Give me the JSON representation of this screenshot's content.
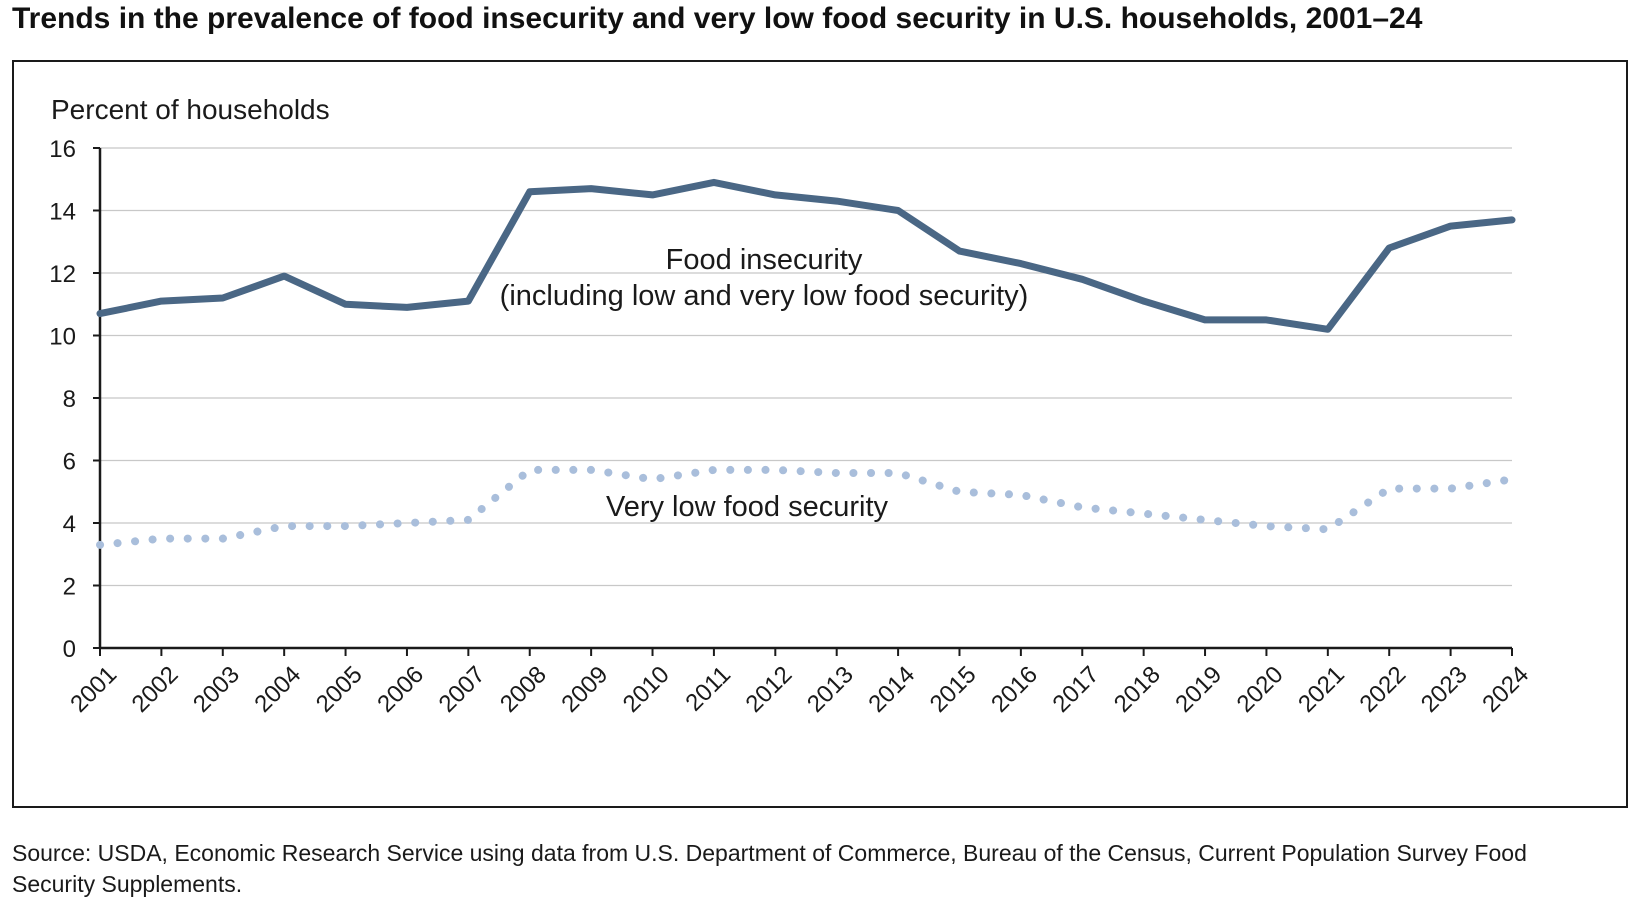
{
  "title": "Trends in the prevalence of food insecurity and very low food security in U.S. households, 2001–24",
  "source": "Source: USDA, Economic Research Service using data from U.S. Department of Commerce, Bureau of the Census, Current Population Survey Food Security Supplements.",
  "chart_data": {
    "type": "line",
    "ylabel": "Percent of households",
    "xlabel": "",
    "ylim": [
      0,
      16
    ],
    "yticks": [
      "0",
      "2",
      "4",
      "6",
      "8",
      "10",
      "12",
      "14",
      "16"
    ],
    "grid": "horizontal",
    "legend": "none",
    "categories": [
      "2001",
      "2002",
      "2003",
      "2004",
      "2005",
      "2006",
      "2007",
      "2008",
      "2009",
      "2010",
      "2011",
      "2012",
      "2013",
      "2014",
      "2015",
      "2016",
      "2017",
      "2018",
      "2019",
      "2020",
      "2021",
      "2022",
      "2023",
      "2024"
    ],
    "series": [
      {
        "name": "Food insecurity",
        "label_lines": [
          "Food insecurity",
          "(including low and very low food security)"
        ],
        "style": "solid",
        "color": "#4a6785",
        "values": [
          10.7,
          11.1,
          11.2,
          11.9,
          11.0,
          10.9,
          11.1,
          14.6,
          14.7,
          14.5,
          14.9,
          14.5,
          14.3,
          14.0,
          12.7,
          12.3,
          11.8,
          11.1,
          10.5,
          10.5,
          10.2,
          12.8,
          13.5,
          13.7
        ]
      },
      {
        "name": "Very low food security",
        "label_lines": [
          "Very low food security"
        ],
        "style": "dotted",
        "color": "#a9bedb",
        "values": [
          3.3,
          3.5,
          3.5,
          3.9,
          3.9,
          4.0,
          4.1,
          5.7,
          5.7,
          5.4,
          5.7,
          5.7,
          5.6,
          5.6,
          5.0,
          4.9,
          4.5,
          4.3,
          4.1,
          3.9,
          3.8,
          5.1,
          5.1,
          5.4
        ]
      }
    ]
  }
}
